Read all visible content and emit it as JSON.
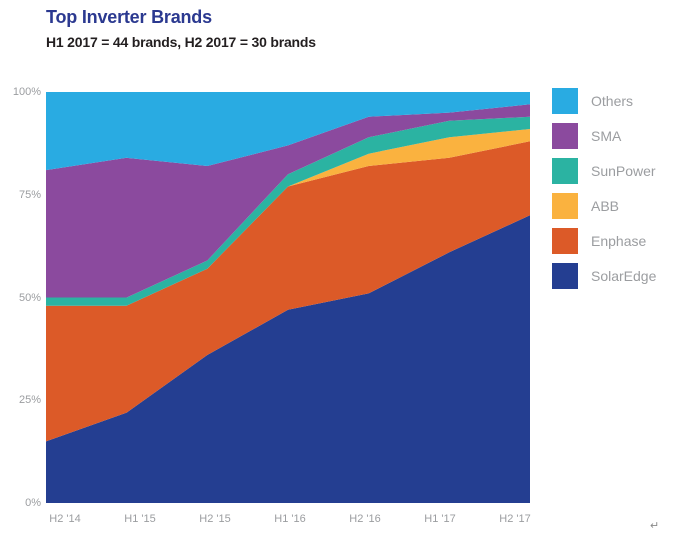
{
  "header": {
    "title": "Top Inverter Brands",
    "subtitle": "H1 2017 = 44 brands, H2 2017 = 30 brands"
  },
  "colors": {
    "title": "#2B3990",
    "subtitle": "#231F20",
    "axis_label": "#9B9DA0",
    "legend_label": "#9B9DA0",
    "background": "#FFFFFF"
  },
  "chart_data": {
    "type": "area",
    "stacked": true,
    "unit": "%",
    "title": "Top Inverter Brands",
    "subtitle": "H1 2017 = 44 brands, H2 2017 = 30 brands",
    "categories": [
      "H2 '14",
      "H1 '15",
      "H2 '15",
      "H1 '16",
      "H2 '16",
      "H1 '17",
      "H2 '17"
    ],
    "series": [
      {
        "name": "SolarEdge",
        "color": "#243E91",
        "values": [
          15,
          22,
          36,
          47,
          51,
          61,
          70
        ]
      },
      {
        "name": "Enphase",
        "color": "#DC5A28",
        "values": [
          33,
          26,
          21,
          30,
          31,
          23,
          18
        ]
      },
      {
        "name": "ABB",
        "color": "#FAB23F",
        "values": [
          0,
          0,
          0,
          0,
          3,
          5,
          3
        ]
      },
      {
        "name": "SunPower",
        "color": "#2BB3A2",
        "values": [
          2,
          2,
          2,
          3,
          4,
          4,
          3
        ]
      },
      {
        "name": "SMA",
        "color": "#8B4A9E",
        "values": [
          31,
          34,
          23,
          7,
          5,
          2,
          3
        ]
      },
      {
        "name": "Others",
        "color": "#29ABE2",
        "values": [
          19,
          16,
          18,
          13,
          6,
          5,
          3
        ]
      }
    ],
    "legend_order": [
      "Others",
      "SMA",
      "SunPower",
      "ABB",
      "Enphase",
      "SolarEdge"
    ],
    "legend_position": "right",
    "y_ticks": [
      {
        "label": "100%",
        "value": 100
      },
      {
        "label": "75%",
        "value": 75
      },
      {
        "label": "50%",
        "value": 50
      },
      {
        "label": "25%",
        "value": 25
      },
      {
        "label": "0%",
        "value": 0
      }
    ],
    "ylim": [
      0,
      100
    ],
    "grid": false
  },
  "footer": {
    "return_mark": "↵"
  }
}
